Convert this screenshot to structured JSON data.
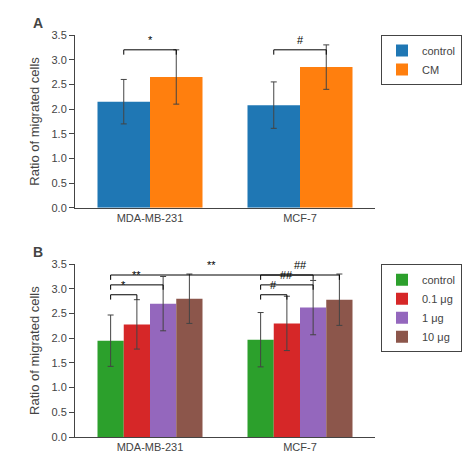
{
  "chart_data": [
    {
      "type": "bar",
      "title": "A",
      "categories": [
        "MDA-MB-231",
        "MCF-7"
      ],
      "series": [
        {
          "name": "control",
          "values": [
            2.15,
            2.08
          ],
          "errors": [
            0.45,
            0.47
          ]
        },
        {
          "name": "CM",
          "values": [
            2.65,
            2.85
          ],
          "errors": [
            0.55,
            0.45
          ]
        }
      ],
      "ylabel": "Ratio of migrated cells",
      "ylim": [
        0,
        3.5
      ],
      "yticks": [
        {
          "value": 0,
          "label": "0.0"
        },
        0.5,
        {
          "value": 1,
          "label": "1.0"
        },
        1.5,
        {
          "value": 2,
          "label": "2.0"
        },
        2.5,
        {
          "value": 3,
          "label": "3.0"
        },
        3.5
      ],
      "grid": false,
      "legend": "upper right",
      "annotations": [
        {
          "text": "*",
          "y": 3.2,
          "from": {
            "category": "MDA-MB-231",
            "series": "control"
          },
          "to": {
            "category": "MDA-MB-231",
            "series": "CM"
          }
        },
        {
          "text": "#",
          "y": 3.2,
          "from": {
            "category": "MCF-7",
            "series": "control"
          },
          "to": {
            "category": "MCF-7",
            "series": "CM"
          }
        }
      ]
    },
    {
      "type": "bar",
      "title": "B",
      "categories": [
        "MDA-MB-231",
        "MCF-7"
      ],
      "series": [
        {
          "name": "control",
          "values": [
            1.95,
            1.97
          ],
          "errors": [
            0.52,
            0.55
          ]
        },
        {
          "name": "0.1 μg",
          "values": [
            2.28,
            2.3
          ],
          "errors": [
            0.5,
            0.55
          ]
        },
        {
          "name": "1 μg",
          "values": [
            2.7,
            2.62
          ],
          "errors": [
            0.55,
            0.55
          ]
        },
        {
          "name": "10 μg",
          "values": [
            2.8,
            2.78
          ],
          "errors": [
            0.5,
            0.52
          ]
        }
      ],
      "ylabel": "Ratio of migrated cells",
      "ylim": [
        0,
        3.5
      ],
      "yticks": [
        {
          "value": 0,
          "label": "0.0"
        },
        0.5,
        {
          "value": 1,
          "label": "1.0"
        },
        1.5,
        {
          "value": 2,
          "label": "2.0"
        },
        2.5,
        {
          "value": 3,
          "label": "3.0"
        },
        3.5
      ],
      "grid": false,
      "legend": "upper right",
      "annotations": [
        {
          "text": "*",
          "y": 2.88,
          "from": {
            "category": "MDA-MB-231",
            "series": "control"
          },
          "to": {
            "category": "MDA-MB-231",
            "series": "0.1 μg"
          }
        },
        {
          "text": "**",
          "y": 3.08,
          "from": {
            "category": "MDA-MB-231",
            "series": "control"
          },
          "to": {
            "category": "MDA-MB-231",
            "series": "1 μg"
          }
        },
        {
          "text": "**",
          "y": 3.28,
          "from": {
            "category": "MDA-MB-231",
            "series": "control"
          },
          "to": {
            "category": "MCF-7",
            "series": "1 μg"
          }
        },
        {
          "text": "#",
          "y": 2.88,
          "from": {
            "category": "MCF-7",
            "series": "control"
          },
          "to": {
            "category": "MCF-7",
            "series": "0.1 μg"
          }
        },
        {
          "text": "##",
          "y": 3.08,
          "from": {
            "category": "MCF-7",
            "series": "control"
          },
          "to": {
            "category": "MCF-7",
            "series": "1 μg"
          }
        },
        {
          "text": "##",
          "y": 3.28,
          "from": {
            "category": "MCF-7",
            "series": "control"
          },
          "to": {
            "category": "MCF-7",
            "series": "10 μg"
          }
        }
      ]
    }
  ]
}
